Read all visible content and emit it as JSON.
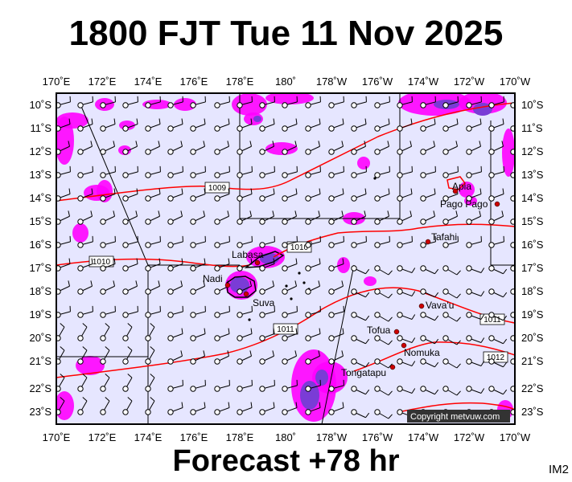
{
  "title": "1800 FJT Tue 11 Nov 2025",
  "footer": "Forecast +78 hr",
  "product_code": "IM2",
  "copyright": "Copyright metvuw.com",
  "colors": {
    "background": "#e6e6ff",
    "precip_light": "#ff00ff",
    "precip_heavy": "#7a3cd6",
    "isobar": "#ff0000",
    "land": "#ff0000",
    "town": "#cc0000"
  },
  "axes": {
    "lon_labels": [
      "170˚E",
      "172˚E",
      "174˚E",
      "176˚E",
      "178˚E",
      "180˚",
      "178˚W",
      "176˚W",
      "174˚W",
      "172˚W",
      "170˚W"
    ],
    "lat_labels": [
      "10˚S",
      "11˚S",
      "12˚S",
      "13˚S",
      "14˚S",
      "15˚S",
      "16˚S",
      "17˚S",
      "18˚S",
      "19˚S",
      "20˚S",
      "21˚S",
      "22˚S",
      "23˚S"
    ]
  },
  "isobars": [
    {
      "label": "1009"
    },
    {
      "label": "1010"
    },
    {
      "label": "1010"
    },
    {
      "label": "1011"
    },
    {
      "label": "1011"
    },
    {
      "label": "1012"
    }
  ],
  "places": [
    {
      "name": "Apia"
    },
    {
      "name": "Pago Pago"
    },
    {
      "name": "Tafahi"
    },
    {
      "name": "Labasa"
    },
    {
      "name": "Nadi"
    },
    {
      "name": "Suva"
    },
    {
      "name": "Vava'u"
    },
    {
      "name": "Tofua"
    },
    {
      "name": "Nomuka"
    },
    {
      "name": "Tongatapu"
    }
  ]
}
